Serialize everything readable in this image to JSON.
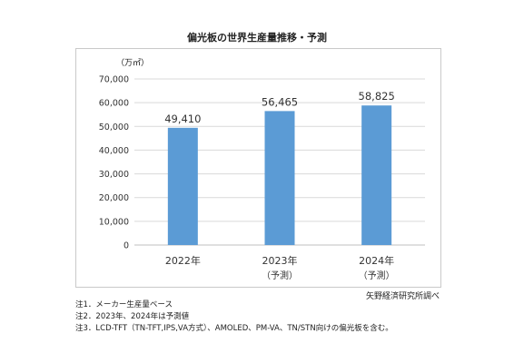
{
  "title": "偏光板の世界生産量推移・予測",
  "unit_label": "（万㎡）",
  "source": "矢野経済研究所調べ",
  "notes": [
    "注1．メーカー生産量ベース",
    "注2．2023年、2024年は予測値",
    "注3．LCD-TFT（TN-TFT,IPS,VA方式）、AMOLED、PM-VA、TN/STN向けの偏光板を含む。"
  ],
  "colors": {
    "bar": "#5b9bd5",
    "grid": "#d9d9d9",
    "axis": "#bfbfbf"
  },
  "chart_data": {
    "type": "bar",
    "title": "偏光板の世界生産量推移・予測",
    "ylabel": "（万㎡）",
    "ylim": [
      0,
      70000
    ],
    "yticks": [
      "0",
      "10,000",
      "20,000",
      "30,000",
      "40,000",
      "50,000",
      "60,000",
      "70,000"
    ],
    "grid": true,
    "categories": [
      "2022年",
      "2023年",
      "2024年"
    ],
    "category_sublabels": [
      "",
      "（予測）",
      "（予測）"
    ],
    "values": [
      49410,
      56465,
      58825
    ],
    "value_labels": [
      "49,410",
      "56,465",
      "58,825"
    ]
  }
}
